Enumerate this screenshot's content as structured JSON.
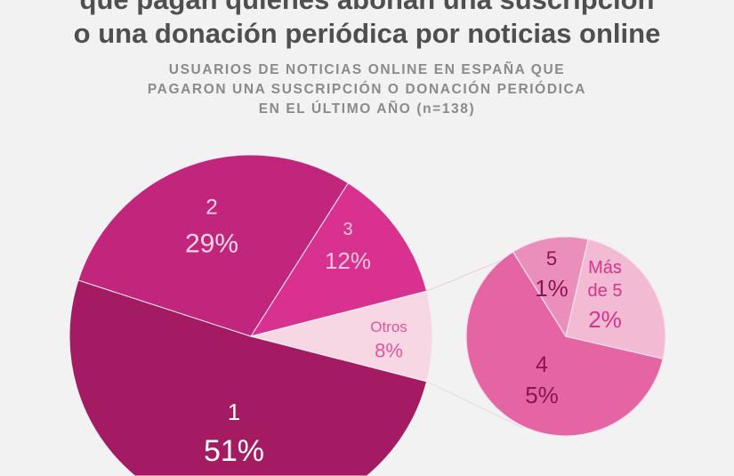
{
  "chart_data": {
    "type": "pie",
    "title_lines": [
      "que pagan quienes abonan una suscripción",
      "o una donación periódica por noticias online"
    ],
    "subtitle_lines": [
      "USUARIOS DE NOTICIAS ONLINE EN ESPAÑA QUE",
      "PAGARON UNA SUSCRIPCIÓN O DONACIÓN PERIÓDICA",
      "EN EL ÚLTIMO AÑO (n=138)"
    ],
    "main_pie": [
      {
        "label": "1",
        "value": 51,
        "value_label": "51%",
        "color": "#a41b63",
        "text_color": "#ffffff"
      },
      {
        "label": "2",
        "value": 29,
        "value_label": "29%",
        "color": "#c2257c",
        "text_color": "#f7d6e6"
      },
      {
        "label": "3",
        "value": 12,
        "value_label": "12%",
        "color": "#d9318f",
        "text_color": "#f7c6de"
      },
      {
        "label": "Otros",
        "value": 8,
        "value_label": "8%",
        "color": "#f8d7e4",
        "text_color": "#e0549c"
      }
    ],
    "detail_pie": {
      "of": "Otros",
      "slices": [
        {
          "label": "4",
          "value": 5,
          "value_label": "5%",
          "color": "#e564a3",
          "text_color": "#8a1452"
        },
        {
          "label": "5",
          "value": 1,
          "value_label": "1%",
          "color": "#ea8fbb",
          "text_color": "#8a1452"
        },
        {
          "label": "Más de 5",
          "label_lines": [
            "Más",
            "de 5"
          ],
          "value": 2,
          "value_label": "2%",
          "color": "#f3bad4",
          "text_color": "#d5338c"
        }
      ]
    },
    "background": "#f2f2f2"
  }
}
